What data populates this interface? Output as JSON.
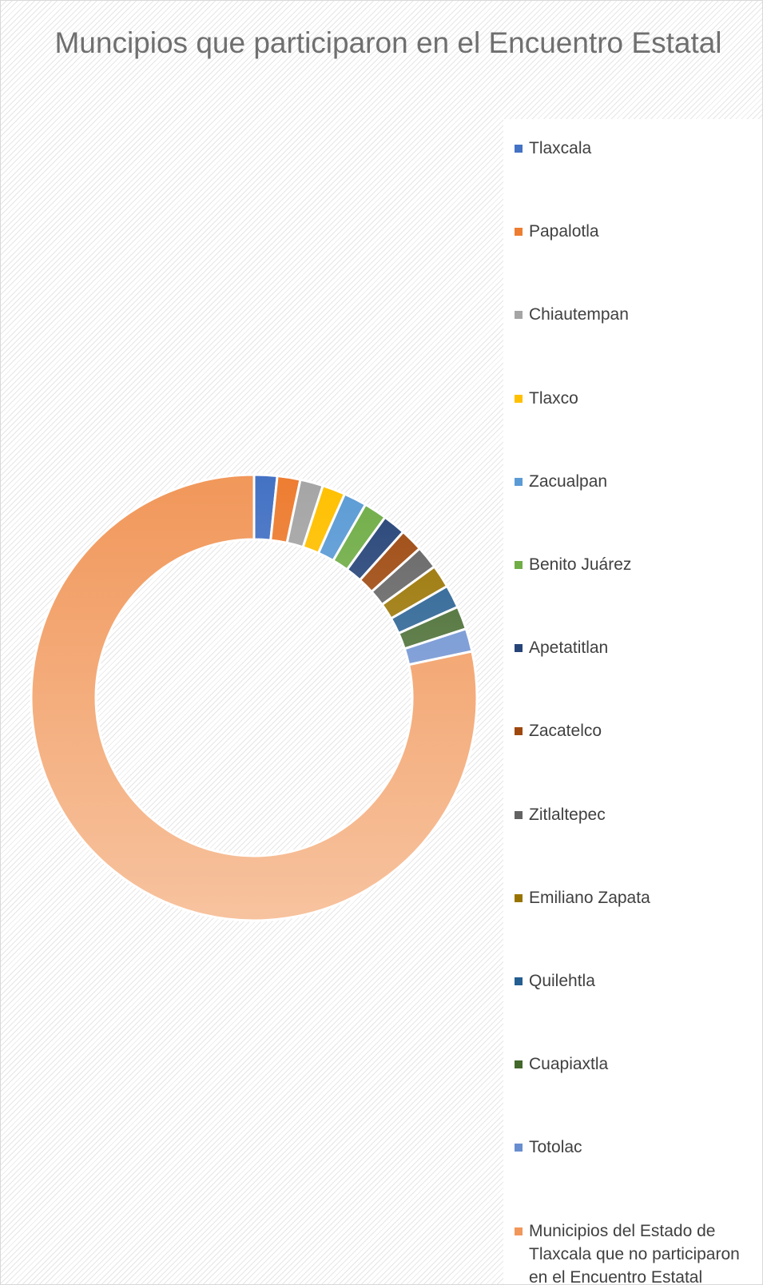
{
  "chart_data": {
    "type": "donut",
    "title": "Muncipios que participaron en el Encuentro Estatal",
    "legend_position": "right",
    "series": [
      {
        "categories": [
          "Tlaxcala",
          "Papalotla",
          "Chiautempan",
          "Tlaxco",
          "Zacualpan",
          "Benito Juárez",
          "Apetatitlan",
          "Zacatelco",
          "Zitlaltepec",
          "Emiliano Zapata",
          "Quilehtla",
          "Cuapiaxtla",
          "Totolac",
          "Municipios del Estado de Tlaxcala que no participaron en el Encuentro Estatal"
        ],
        "values": [
          1,
          1,
          1,
          1,
          1,
          1,
          1,
          1,
          1,
          1,
          1,
          1,
          1,
          47
        ],
        "colors": [
          "#4472c4",
          "#ed7d31",
          "#a5a5a5",
          "#ffc000",
          "#5b9bd5",
          "#70ad47",
          "#264478",
          "#9e480e",
          "#636363",
          "#997300",
          "#255e91",
          "#43682b",
          "#698ed0",
          "#f1975a"
        ]
      }
    ]
  }
}
